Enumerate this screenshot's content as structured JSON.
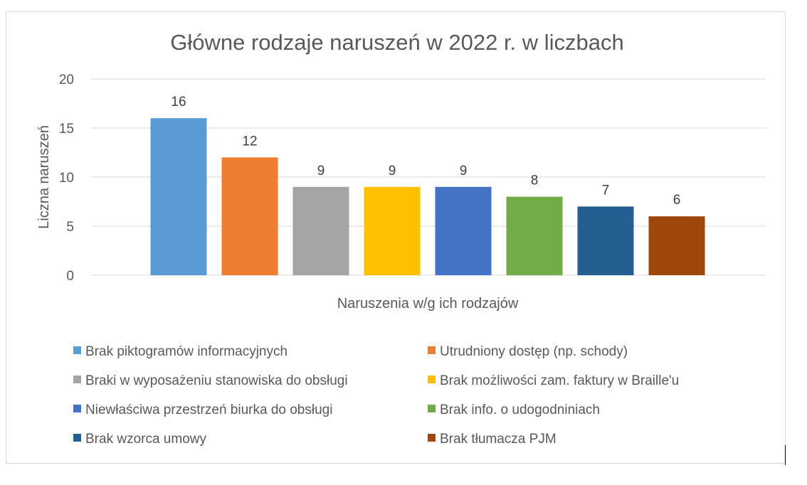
{
  "chart_data": {
    "type": "bar",
    "title": "Główne rodzaje naruszeń w 2022 r. w liczbach",
    "xlabel": "Naruszenia w/g ich rodzajów",
    "ylabel": "Liczna naruszeń",
    "ylim": [
      0,
      20
    ],
    "yticks": [
      "0",
      "5",
      "10",
      "15",
      "20"
    ],
    "grid": true,
    "legend_position": "bottom",
    "categories": [
      "Brak piktogramów informacyjnych",
      "Utrudniony dostęp (np. schody)",
      "Braki w wyposażeniu stanowiska do obsługi",
      "Brak możliwości zam. faktury w Braille'u",
      "Niewłaściwa przestrzeń biurka do obsługi",
      "Brak info. o udogodniniach",
      "Brak wzorca umowy",
      "Brak tłumacza PJM"
    ],
    "values": [
      16,
      12,
      9,
      9,
      9,
      8,
      7,
      6
    ],
    "colors": [
      "#5b9bd5",
      "#ed7d31",
      "#a5a5a5",
      "#ffc000",
      "#4472c4",
      "#70ad47",
      "#255e91",
      "#9e480e"
    ]
  }
}
